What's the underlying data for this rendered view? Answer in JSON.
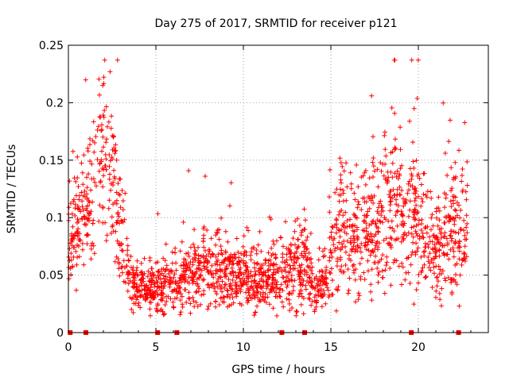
{
  "chart_data": {
    "type": "scatter",
    "title": "Day 275 of 2017, SRMTID for receiver p121",
    "xlabel": "GPS time / hours",
    "ylabel": "SRMTID / TECUs",
    "xlim": [
      0,
      24
    ],
    "ylim": [
      0,
      0.25
    ],
    "x_ticks": [
      0,
      5,
      10,
      15,
      20
    ],
    "x_tick_labels": [
      "0",
      "5",
      "10",
      "15",
      "20"
    ],
    "y_ticks": [
      0,
      0.05,
      0.1,
      0.15,
      0.2,
      0.25
    ],
    "y_tick_labels": [
      "0",
      "0.05",
      "0.1",
      "0.15",
      "0.2",
      "0.25"
    ],
    "grid": true,
    "marker": "+",
    "color": "#ff0000",
    "zero_markers_x": [
      0.1,
      1.0,
      5.1,
      6.2,
      12.2,
      13.5,
      19.6,
      22.3
    ],
    "envelope": {
      "hours": [
        0,
        0.5,
        1.0,
        1.5,
        2.0,
        2.5,
        3.0,
        3.5,
        4.0,
        4.5,
        5.0,
        5.5,
        6.0,
        6.5,
        7.0,
        7.5,
        8.0,
        8.5,
        9.0,
        9.5,
        10.0,
        10.5,
        11.0,
        11.5,
        12.0,
        12.5,
        13.0,
        13.5,
        14.0,
        14.5,
        15.0,
        15.5,
        16.0,
        16.5,
        17.0,
        17.5,
        18.0,
        18.5,
        19.0,
        19.5,
        20.0,
        20.5,
        21.0,
        21.5,
        22.0,
        22.5,
        22.8
      ],
      "center": [
        0.085,
        0.095,
        0.11,
        0.13,
        0.155,
        0.14,
        0.09,
        0.05,
        0.04,
        0.04,
        0.038,
        0.042,
        0.045,
        0.048,
        0.05,
        0.055,
        0.055,
        0.053,
        0.052,
        0.05,
        0.048,
        0.046,
        0.046,
        0.045,
        0.048,
        0.052,
        0.06,
        0.065,
        0.04,
        0.04,
        0.07,
        0.095,
        0.09,
        0.08,
        0.09,
        0.1,
        0.105,
        0.11,
        0.1,
        0.095,
        0.1,
        0.075,
        0.07,
        0.085,
        0.09,
        0.09,
        0.09
      ],
      "spread": [
        0.022,
        0.025,
        0.03,
        0.04,
        0.045,
        0.04,
        0.03,
        0.016,
        0.013,
        0.014,
        0.014,
        0.015,
        0.016,
        0.018,
        0.019,
        0.02,
        0.02,
        0.02,
        0.02,
        0.018,
        0.018,
        0.017,
        0.016,
        0.016,
        0.017,
        0.02,
        0.022,
        0.024,
        0.015,
        0.015,
        0.025,
        0.03,
        0.03,
        0.03,
        0.032,
        0.035,
        0.035,
        0.038,
        0.032,
        0.03,
        0.035,
        0.03,
        0.025,
        0.03,
        0.035,
        0.035,
        0.032
      ]
    },
    "n_points": 2300
  }
}
